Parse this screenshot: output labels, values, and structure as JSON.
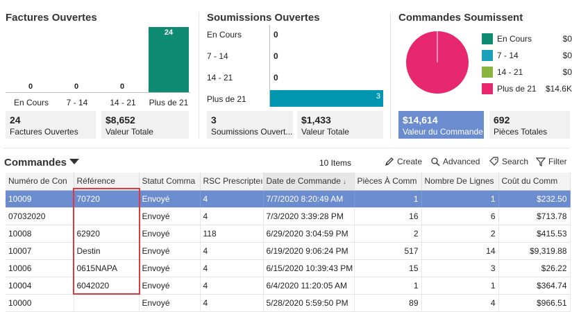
{
  "factures": {
    "title": "Factures Ouvertes",
    "categories": [
      "En Cours",
      "7 - 14",
      "14 - 21",
      "Plus de 21"
    ],
    "values": [
      0,
      0,
      0,
      24
    ],
    "labels": [
      "0",
      "0",
      "0",
      "24"
    ],
    "color": "#0f8a73",
    "tiles": [
      {
        "value": "24",
        "label": "Factures Ouvertes"
      },
      {
        "value": "$8,652",
        "label": "Valeur Totale"
      }
    ]
  },
  "soumissions": {
    "title": "Soumissions Ouvertes",
    "categories": [
      "En Cours",
      "7 - 14",
      "14 - 21",
      "Plus de 21"
    ],
    "values": [
      0,
      0,
      0,
      3
    ],
    "labels": [
      "0",
      "0",
      "0",
      "3"
    ],
    "color": "#0096b0",
    "tiles": [
      {
        "value": "3",
        "label": "Soumissions Ouvert..."
      },
      {
        "value": "$1,433",
        "label": "Valeur Totale"
      }
    ]
  },
  "commandes_chart": {
    "title": "Commandes Soumissent",
    "legend": [
      {
        "label": "En Cours",
        "value": "$0",
        "color": "#0f8a73"
      },
      {
        "label": "7 - 14",
        "value": "$0",
        "color": "#1aa0b8"
      },
      {
        "label": "14 - 21",
        "value": "$0",
        "color": "#8ab541"
      },
      {
        "label": "Plus de 21",
        "value": "$14.6K",
        "color": "#e8286e"
      }
    ],
    "tiles": [
      {
        "value": "$14,614",
        "label": "Valeur du Commande"
      },
      {
        "value": "692",
        "label": "Pièces Totales"
      }
    ]
  },
  "chart_data": [
    {
      "type": "bar",
      "title": "Factures Ouvertes",
      "categories": [
        "En Cours",
        "7 - 14",
        "14 - 21",
        "Plus de 21"
      ],
      "values": [
        0,
        0,
        0,
        24
      ]
    },
    {
      "type": "bar",
      "orientation": "horizontal",
      "title": "Soumissions Ouvertes",
      "categories": [
        "En Cours",
        "7 - 14",
        "14 - 21",
        "Plus de 21"
      ],
      "values": [
        0,
        0,
        0,
        3
      ]
    },
    {
      "type": "pie",
      "title": "Commandes Soumissent",
      "categories": [
        "En Cours",
        "7 - 14",
        "14 - 21",
        "Plus de 21"
      ],
      "values": [
        0,
        0,
        0,
        14614
      ],
      "legend": "right"
    }
  ],
  "orders": {
    "title": "Commandes",
    "items_count": "10 Items",
    "toolbar": {
      "create": "Create",
      "advanced": "Advanced",
      "search": "Search",
      "filter": "Filter"
    },
    "columns": [
      "Numéro de Con",
      "Référence",
      "Statut Comma",
      "RSC Prescripteı",
      "Date de Commande",
      "Pièces À Comm",
      "Nombre De Lignes",
      "Coût du Comm"
    ],
    "rows": [
      [
        "10009",
        "70720",
        "Envoyé",
        "4",
        "7/7/2020 8:20:49 AM",
        "1",
        "1",
        "$232.50"
      ],
      [
        "07032020",
        "",
        "Envoyé",
        "4",
        "7/3/2020 3:39:28 PM",
        "16",
        "6",
        "$713.78"
      ],
      [
        "10008",
        "62920",
        "Envoyé",
        "118",
        "6/29/2020 3:04:59 PM",
        "2",
        "2",
        "$415.53"
      ],
      [
        "10007",
        "Destin",
        "Envoyé",
        "4",
        "6/19/2020 9:06:24 PM",
        "517",
        "14",
        "$9,319.88"
      ],
      [
        "10006",
        "0615NAPA",
        "Envoyé",
        "4",
        "6/15/2020 10:39:43 PM",
        "15",
        "3",
        "$26.22"
      ],
      [
        "10004",
        "6042020",
        "Envoyé",
        "4",
        "6/4/2020 11:20:05 AM",
        "1",
        "1",
        "$364.74"
      ],
      [
        "10000",
        "",
        "Envoyé",
        "4",
        "5/28/2020 5:59:50 PM",
        "89",
        "4",
        "$966.51"
      ]
    ],
    "selected_row": 0
  }
}
